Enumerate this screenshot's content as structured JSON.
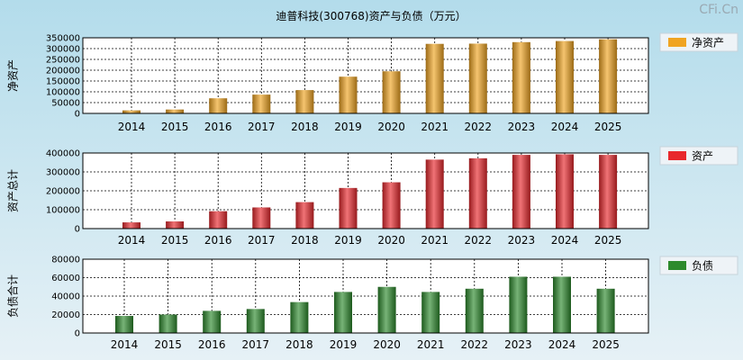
{
  "title": "迪普科技(300768)资产与负债（万元）",
  "watermark": "CFi.Cn",
  "chart_data": [
    {
      "type": "bar",
      "categories": [
        "2014",
        "2015",
        "2016",
        "2017",
        "2018",
        "2019",
        "2020",
        "2021",
        "2022",
        "2023",
        "2024",
        "2025"
      ],
      "ylabel": "净资产",
      "ylim": [
        0,
        350000
      ],
      "yticks": [
        0,
        50000,
        100000,
        150000,
        200000,
        250000,
        300000,
        350000
      ],
      "grid": true,
      "legend": "top-right",
      "series": [
        {
          "name": "净资产",
          "color": "#f0a422",
          "values": [
            14000,
            18000,
            70000,
            87000,
            108000,
            170000,
            195000,
            322000,
            323000,
            330000,
            335000,
            343000
          ]
        }
      ]
    },
    {
      "type": "bar",
      "categories": [
        "2014",
        "2015",
        "2016",
        "2017",
        "2018",
        "2019",
        "2020",
        "2021",
        "2022",
        "2023",
        "2024",
        "2025"
      ],
      "ylabel": "资产总计",
      "ylim": [
        0,
        400000
      ],
      "yticks": [
        0,
        100000,
        200000,
        300000,
        400000
      ],
      "grid": true,
      "legend": "top-right",
      "series": [
        {
          "name": "资产",
          "color": "#e8282c",
          "values": [
            33000,
            38000,
            92000,
            112000,
            140000,
            215000,
            245000,
            365000,
            372000,
            390000,
            393000,
            390000
          ]
        }
      ]
    },
    {
      "type": "bar",
      "categories": [
        "2014",
        "2015",
        "2016",
        "2017",
        "2018",
        "2019",
        "2020",
        "2021",
        "2022",
        "2023",
        "2024",
        "2025"
      ],
      "ylabel": "负债合计",
      "ylim": [
        0,
        80000
      ],
      "yticks": [
        0,
        20000,
        40000,
        60000,
        80000
      ],
      "grid": true,
      "legend": "top-right",
      "series": [
        {
          "name": "负债",
          "color": "#2d8a2d",
          "values": [
            18500,
            20000,
            24000,
            26000,
            33500,
            44500,
            50000,
            44500,
            48000,
            61000,
            61000,
            48000
          ]
        }
      ]
    }
  ]
}
